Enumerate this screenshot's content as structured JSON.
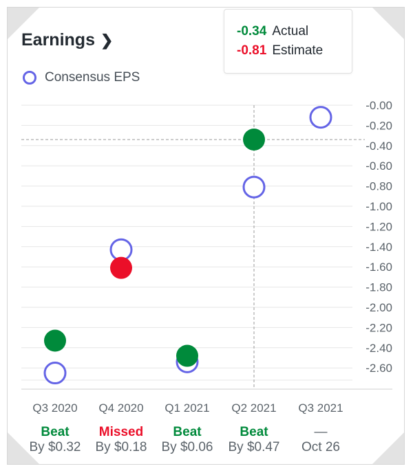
{
  "header": {
    "title": "Earnings"
  },
  "legend": {
    "consensus_label": "Consensus EPS"
  },
  "tooltip": {
    "actual_value": "-0.34",
    "actual_label": "Actual",
    "estimate_value": "-0.81",
    "estimate_label": "Estimate"
  },
  "colors": {
    "beat": "#008a3b",
    "missed": "#eb0f29",
    "consensus_ring": "#6464e6"
  },
  "chart_data": {
    "type": "scatter",
    "categories": [
      "Q3 2020",
      "Q4 2020",
      "Q1 2021",
      "Q2 2021",
      "Q3 2021"
    ],
    "series": [
      {
        "name": "Consensus EPS",
        "values": [
          -2.65,
          -1.43,
          -2.54,
          -0.81,
          -0.12
        ]
      },
      {
        "name": "Actual",
        "values": [
          -2.33,
          -1.61,
          -2.48,
          -0.34,
          null
        ]
      }
    ],
    "y_ticks": [
      "-0.00",
      "-0.20",
      "-0.40",
      "-0.60",
      "-0.80",
      "-1.00",
      "-1.20",
      "-1.40",
      "-1.60",
      "-1.80",
      "-2.00",
      "-2.20",
      "-2.40",
      "-2.60"
    ],
    "ylim": [
      -2.7,
      0
    ],
    "grid": true,
    "crosshair": {
      "category": "Q2 2021",
      "value": -0.34
    },
    "results": [
      {
        "status": "Beat",
        "detail": "By $0.32"
      },
      {
        "status": "Missed",
        "detail": "By $0.18"
      },
      {
        "status": "Beat",
        "detail": "By $0.06"
      },
      {
        "status": "Beat",
        "detail": "By $0.47"
      },
      {
        "status": "—",
        "detail": "Oct 26"
      }
    ]
  }
}
